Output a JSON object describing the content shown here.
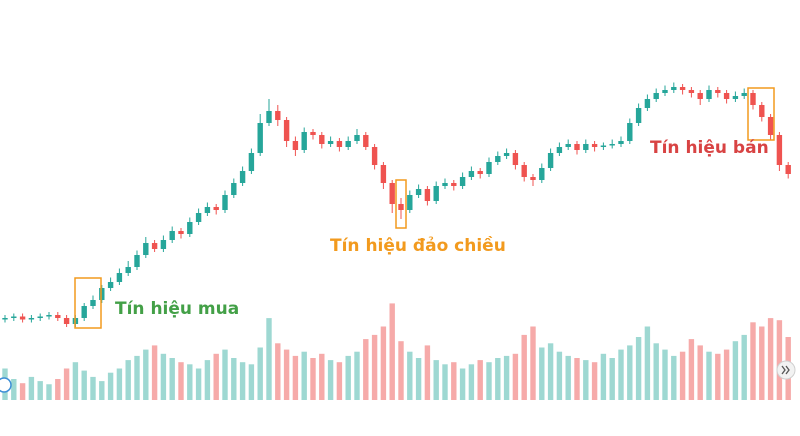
{
  "chart_data": {
    "type": "candlestick",
    "up_color": "#26a69a",
    "down_color": "#ef5350",
    "volume_up_color": "#9ed8d2",
    "volume_down_color": "#f6aaa9",
    "ylim": [
      0,
      100
    ],
    "volume_lim": [
      0,
      100
    ],
    "annotations": [
      {
        "text": "Tín hiệu mua",
        "color": "#43a047"
      },
      {
        "text": "Tín hiệu đảo chiều",
        "color": "#f29a1e"
      },
      {
        "text": "Tín hiệu bán",
        "color": "#d84343"
      }
    ],
    "open": [
      8.5,
      9,
      9.5,
      8.5,
      9,
      9.5,
      10,
      9,
      7,
      9,
      13,
      15,
      19,
      21,
      24,
      26,
      30,
      34,
      32,
      35,
      38,
      37,
      41,
      44,
      46,
      45,
      50,
      54,
      58,
      64,
      74,
      78,
      75,
      68,
      65,
      71,
      70,
      67,
      68,
      66,
      68,
      70,
      66,
      60,
      54,
      47,
      45,
      50,
      52,
      48,
      53,
      54,
      53,
      56,
      58,
      57,
      61,
      63,
      64,
      60,
      56,
      55,
      59,
      64,
      66,
      67,
      65,
      67,
      66,
      66.5,
      67,
      68,
      74,
      79,
      82,
      84,
      85,
      86,
      85,
      84,
      82,
      85,
      84,
      82,
      83,
      84,
      80,
      76,
      70,
      60
    ],
    "high": [
      10,
      10.5,
      10.5,
      10,
      10.5,
      11,
      11,
      10,
      10,
      14,
      16.5,
      20,
      22.5,
      25.5,
      28,
      31.5,
      36,
      35,
      36.5,
      39.5,
      39,
      42.5,
      45.5,
      47.5,
      47,
      51.5,
      55.5,
      59.5,
      65.5,
      77,
      82,
      80,
      76,
      69.5,
      72.5,
      72,
      71,
      69.5,
      69,
      69.5,
      72,
      71,
      67,
      61,
      55,
      49,
      51.5,
      53.5,
      53,
      54.5,
      55.5,
      55,
      57.5,
      59.5,
      59,
      62.5,
      64.5,
      65.5,
      65,
      61,
      57,
      60.5,
      65.5,
      67.5,
      68.5,
      68,
      68.5,
      68,
      67.5,
      68.5,
      69.5,
      75.5,
      80.5,
      83.5,
      85.5,
      86.5,
      87.5,
      87,
      86,
      85,
      86.5,
      86,
      85,
      84.5,
      85.5,
      85,
      81,
      77,
      71,
      61
    ],
    "low": [
      7.5,
      8,
      7.5,
      7.5,
      8,
      8.5,
      8,
      6,
      6,
      8,
      12,
      14,
      18,
      20,
      23,
      25,
      29,
      31,
      31,
      34,
      35.5,
      36,
      40,
      43,
      43.5,
      44,
      49,
      53,
      57,
      63,
      73,
      73,
      66,
      63,
      64,
      68.5,
      65.5,
      66,
      64.5,
      65,
      67,
      65,
      58.5,
      52,
      44,
      42,
      44,
      49,
      46.5,
      47,
      52,
      51.5,
      52,
      55,
      55.5,
      56,
      60,
      62,
      58.5,
      54.5,
      53,
      54,
      58,
      63,
      65,
      63.5,
      64,
      64.5,
      65,
      65.5,
      66,
      67,
      73,
      78,
      81,
      83,
      84,
      83.5,
      82.5,
      80,
      81,
      82.5,
      80.5,
      81,
      82,
      78.5,
      74.5,
      68.5,
      58,
      55.5
    ],
    "close": [
      9,
      9.5,
      8.5,
      9,
      9.5,
      10,
      9,
      7,
      9,
      13,
      15,
      19,
      21,
      24,
      26,
      30,
      34,
      32,
      35,
      38,
      37,
      41,
      44,
      46,
      45,
      50,
      54,
      58,
      64,
      74,
      78,
      75,
      68,
      65,
      71,
      70,
      67,
      68,
      66,
      68,
      70,
      66,
      60,
      54,
      47,
      45,
      50,
      52,
      48,
      53,
      54,
      53,
      56,
      58,
      57,
      61,
      63,
      64,
      60,
      56,
      55,
      59,
      64,
      66,
      67,
      65,
      67,
      66,
      66.5,
      67,
      68,
      74,
      79,
      82,
      84,
      85,
      86,
      85,
      84,
      82,
      85,
      84,
      82,
      83,
      84,
      80,
      76,
      70,
      60,
      57
    ],
    "volume": [
      30,
      20,
      16,
      22,
      18,
      15,
      20,
      30,
      36,
      28,
      22,
      18,
      26,
      30,
      38,
      42,
      48,
      52,
      44,
      40,
      36,
      34,
      30,
      38,
      44,
      48,
      40,
      36,
      34,
      50,
      78,
      54,
      48,
      42,
      46,
      40,
      44,
      38,
      36,
      42,
      46,
      58,
      62,
      70,
      92,
      56,
      46,
      40,
      52,
      38,
      34,
      36,
      30,
      34,
      38,
      36,
      40,
      42,
      44,
      62,
      70,
      50,
      54,
      46,
      42,
      40,
      38,
      36,
      44,
      40,
      48,
      52,
      60,
      70,
      54,
      48,
      42,
      46,
      58,
      52,
      46,
      44,
      48,
      56,
      62,
      74,
      70,
      78,
      76,
      60
    ]
  }
}
